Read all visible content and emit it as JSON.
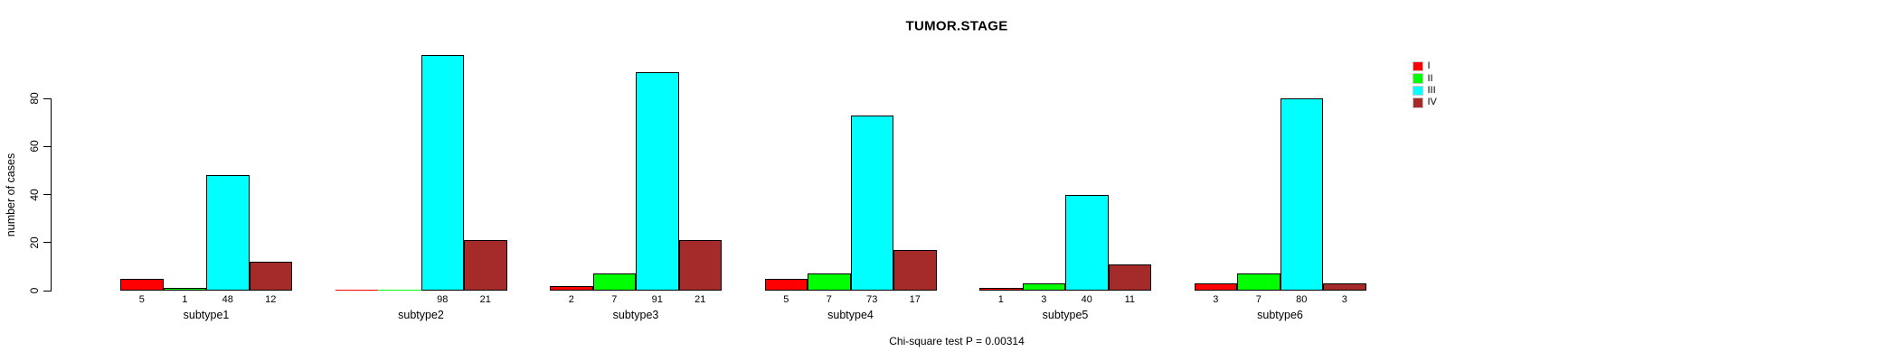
{
  "chart_data": {
    "type": "bar",
    "title": "TUMOR.STAGE",
    "ylabel": "number of cases",
    "footer": "Chi-square test P = 0.00314",
    "categories": [
      "subtype1",
      "subtype2",
      "subtype3",
      "subtype4",
      "subtype5",
      "subtype6"
    ],
    "series": [
      {
        "name": "I",
        "color": "#ff0000",
        "values": [
          5,
          0,
          2,
          5,
          1,
          3
        ],
        "bar_labels": [
          "5",
          "",
          "2",
          "5",
          "1",
          "3"
        ]
      },
      {
        "name": "II",
        "color": "#00ff00",
        "values": [
          1,
          0,
          7,
          7,
          3,
          7
        ],
        "bar_labels": [
          "1",
          "",
          "7",
          "7",
          "3",
          "7"
        ]
      },
      {
        "name": "III",
        "color": "#00ffff",
        "values": [
          48,
          98,
          91,
          73,
          40,
          80
        ],
        "bar_labels": [
          "48",
          "98",
          "91",
          "73",
          "40",
          "80"
        ]
      },
      {
        "name": "IV",
        "color": "#a52a2a",
        "values": [
          12,
          21,
          21,
          17,
          11,
          3
        ],
        "bar_labels": [
          "12",
          "21",
          "21",
          "17",
          "11",
          "3"
        ]
      }
    ],
    "yticks": [
      0,
      20,
      40,
      60,
      80
    ],
    "ylim": [
      0,
      100
    ],
    "grid": false,
    "legend_position": "top-right-outside",
    "bar_border_color": "#000000",
    "zero_height_bars_drawn_as_flat_line": true
  }
}
